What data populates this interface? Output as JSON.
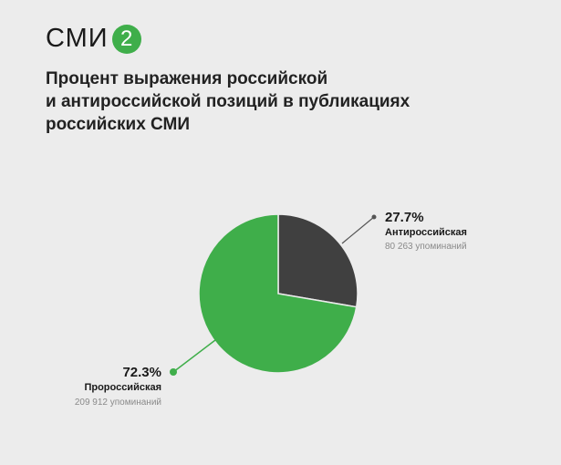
{
  "logo": {
    "text": "СМИ",
    "badge": "2"
  },
  "colors": {
    "background": "#ececec",
    "pro": "#3fae4a",
    "anti": "#404040"
  },
  "chart_data": {
    "type": "pie",
    "title": "Процент выражения российской и антироссийской позиций в публикациях российских СМИ",
    "title_lines": [
      "Процент выражения российской",
      "и антироссийской позиций в публикациях",
      "российских СМИ"
    ],
    "slices": [
      {
        "name": "Антироссийская",
        "percent": 27.7,
        "percent_label": "27.7%",
        "count_label": "80 263 упоминаний",
        "color": "#404040"
      },
      {
        "name": "Пророссийская",
        "percent": 72.3,
        "percent_label": "72.3%",
        "count_label": "209 912 упоминаний",
        "color": "#3fae4a"
      }
    ]
  }
}
